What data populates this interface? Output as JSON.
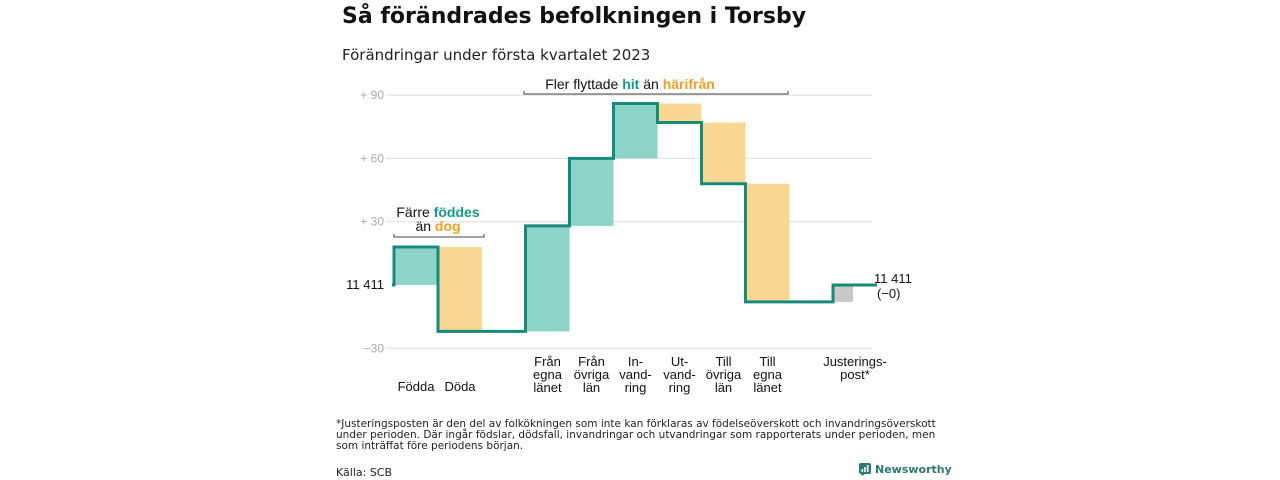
{
  "header": {
    "title": "Så förändrades befolkningen i Torsby",
    "subtitle": "Förändringar under första kvartalet 2023"
  },
  "colors": {
    "increase": "#8dd5ca",
    "decrease": "#fad792",
    "adjustment": "#c8c8c8",
    "line": "#178a7b",
    "hit_text": "#139a86",
    "harifran_text": "#f0a028",
    "grid": "#dddddd",
    "axis_text": "#aaaaaa"
  },
  "chart_data": {
    "type": "bar",
    "subtype": "waterfall",
    "title": "Så förändrades befolkningen i Torsby",
    "subtitle": "Förändringar under första kvartalet 2023",
    "baseline_label": "11 411",
    "end_label": "11 411",
    "end_change_label": "(−0)",
    "ylim": [
      -33,
      95
    ],
    "yticks": [
      {
        "value": 90,
        "label": "+ 90"
      },
      {
        "value": 60,
        "label": "+ 60"
      },
      {
        "value": 30,
        "label": "+ 30"
      },
      {
        "value": -30,
        "label": "−30"
      }
    ],
    "grid": true,
    "steps": [
      {
        "label_lines": [
          "Födda"
        ],
        "delta": 18,
        "kind": "increase"
      },
      {
        "label_lines": [
          "Döda"
        ],
        "delta": -40,
        "kind": "decrease"
      },
      {
        "label_lines": [
          "Från",
          "egna",
          "länet"
        ],
        "delta": 50,
        "kind": "increase"
      },
      {
        "label_lines": [
          "Från",
          "övriga",
          "län"
        ],
        "delta": 32,
        "kind": "increase"
      },
      {
        "label_lines": [
          "In-",
          "vand-",
          "ring"
        ],
        "delta": 26,
        "kind": "increase"
      },
      {
        "label_lines": [
          "Ut-",
          "vand-",
          "ring"
        ],
        "delta": -9,
        "kind": "decrease"
      },
      {
        "label_lines": [
          "Till",
          "övriga",
          "län"
        ],
        "delta": -29,
        "kind": "decrease"
      },
      {
        "label_lines": [
          "Till",
          "egna",
          "länet"
        ],
        "delta": -56,
        "kind": "decrease"
      },
      {
        "label_lines": [
          "Justerings-",
          "post*"
        ],
        "delta": 8,
        "kind": "adjustment"
      }
    ],
    "annotations": [
      {
        "id": "births",
        "line1": {
          "text": "Färre ",
          "hl": "föddes",
          "hl_color": "increase",
          "after": ""
        },
        "line2": {
          "text": "än ",
          "hl": "dog",
          "hl_color": "decrease",
          "after": ""
        }
      },
      {
        "id": "migration",
        "line1": {
          "text": "Fler flyttade ",
          "hl": "hit",
          "hl_color": "increase",
          "after": " än ",
          "hl2": "härifrån",
          "hl2_color": "decrease"
        }
      }
    ]
  },
  "footnote": "*Justeringsposten är den del av folkökningen som inte kan förklaras av födelseöverskott och invandringsöverskott under perioden. Där ingår födslar, dödsfall, invandringar och utvandringar som rapporterats under perioden, men som inträffat före periodens början.",
  "source": "Källa: SCB",
  "brand": "Newsworthy"
}
